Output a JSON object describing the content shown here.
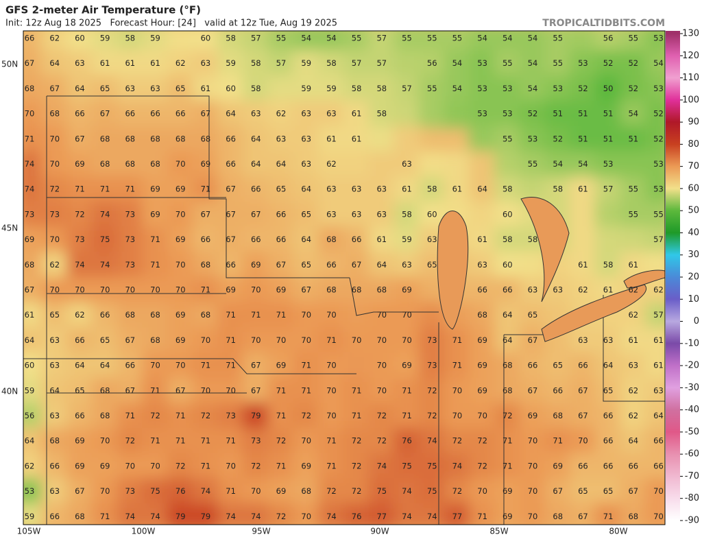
{
  "header": {
    "title": "GFS 2-meter Air Temperature (°F)",
    "subtitle": "Init: 12z Aug 18 2025   Forecast Hour: [24]   valid at 12z Tue, Aug 19 2025",
    "site": "TROPICALTIDBITS.COM"
  },
  "map": {
    "lat_labels": [
      "50N",
      "45N",
      "40N"
    ],
    "lon_labels": [
      "105W",
      "100W",
      "95W",
      "90W",
      "85W",
      "80W"
    ],
    "values": [
      [
        66,
        62,
        60,
        59,
        58,
        59,
        null,
        60,
        58,
        57,
        55,
        54,
        54,
        55,
        57,
        55,
        55,
        55,
        54,
        54,
        54,
        55,
        null,
        56,
        55,
        53
      ],
      [
        67,
        64,
        63,
        61,
        61,
        61,
        62,
        63,
        59,
        58,
        57,
        59,
        58,
        57,
        57,
        null,
        56,
        54,
        53,
        55,
        54,
        55,
        53,
        52,
        52,
        54
      ],
      [
        68,
        67,
        64,
        65,
        63,
        63,
        65,
        61,
        60,
        58,
        null,
        59,
        59,
        58,
        58,
        57,
        55,
        54,
        53,
        53,
        54,
        53,
        52,
        50,
        52,
        53
      ],
      [
        70,
        68,
        66,
        67,
        66,
        66,
        66,
        67,
        64,
        63,
        62,
        63,
        63,
        61,
        58,
        null,
        null,
        null,
        53,
        53,
        52,
        51,
        51,
        51,
        54,
        52
      ],
      [
        71,
        70,
        67,
        68,
        68,
        68,
        68,
        68,
        66,
        64,
        63,
        63,
        61,
        61,
        null,
        null,
        null,
        null,
        null,
        55,
        53,
        52,
        51,
        51,
        51,
        52
      ],
      [
        74,
        70,
        69,
        68,
        68,
        68,
        70,
        69,
        66,
        64,
        64,
        63,
        62,
        null,
        null,
        63,
        null,
        null,
        null,
        null,
        55,
        54,
        54,
        53,
        null,
        53
      ],
      [
        74,
        72,
        71,
        71,
        71,
        69,
        69,
        71,
        67,
        66,
        65,
        64,
        63,
        63,
        63,
        61,
        58,
        61,
        64,
        58,
        null,
        58,
        61,
        57,
        55,
        53
      ],
      [
        73,
        73,
        72,
        74,
        73,
        69,
        70,
        67,
        67,
        67,
        66,
        65,
        63,
        63,
        63,
        58,
        60,
        null,
        null,
        60,
        null,
        null,
        null,
        null,
        55,
        55
      ],
      [
        69,
        70,
        73,
        75,
        73,
        71,
        69,
        66,
        67,
        66,
        66,
        64,
        68,
        66,
        61,
        59,
        63,
        null,
        61,
        58,
        58,
        null,
        null,
        null,
        null,
        57
      ],
      [
        68,
        62,
        74,
        74,
        73,
        71,
        70,
        68,
        66,
        69,
        67,
        65,
        66,
        67,
        64,
        63,
        65,
        null,
        63,
        60,
        null,
        null,
        61,
        58,
        61,
        null
      ],
      [
        67,
        70,
        70,
        70,
        70,
        70,
        70,
        71,
        69,
        70,
        69,
        67,
        68,
        68,
        68,
        69,
        null,
        null,
        66,
        66,
        63,
        63,
        62,
        61,
        62,
        62
      ],
      [
        61,
        65,
        62,
        66,
        68,
        68,
        69,
        68,
        71,
        71,
        71,
        70,
        70,
        null,
        70,
        70,
        null,
        null,
        68,
        64,
        65,
        null,
        null,
        null,
        62,
        57
      ],
      [
        64,
        63,
        66,
        65,
        67,
        68,
        69,
        70,
        71,
        70,
        70,
        70,
        71,
        70,
        70,
        70,
        73,
        71,
        69,
        64,
        67,
        null,
        63,
        63,
        61,
        61
      ],
      [
        60,
        63,
        64,
        64,
        66,
        70,
        70,
        71,
        71,
        67,
        69,
        71,
        70,
        null,
        70,
        69,
        73,
        71,
        69,
        68,
        66,
        65,
        66,
        64,
        63,
        61
      ],
      [
        59,
        64,
        65,
        68,
        67,
        71,
        67,
        70,
        70,
        67,
        71,
        71,
        70,
        71,
        70,
        71,
        72,
        70,
        69,
        68,
        67,
        66,
        67,
        65,
        62,
        63
      ],
      [
        56,
        63,
        66,
        68,
        71,
        72,
        71,
        72,
        73,
        79,
        71,
        72,
        70,
        71,
        72,
        71,
        72,
        70,
        70,
        72,
        69,
        68,
        67,
        66,
        62,
        64
      ],
      [
        64,
        68,
        69,
        70,
        72,
        71,
        71,
        71,
        71,
        73,
        72,
        70,
        71,
        72,
        72,
        76,
        74,
        72,
        72,
        71,
        70,
        71,
        70,
        66,
        64,
        66
      ],
      [
        62,
        66,
        69,
        69,
        70,
        70,
        72,
        71,
        70,
        72,
        71,
        69,
        71,
        72,
        74,
        75,
        75,
        74,
        72,
        71,
        70,
        69,
        66,
        66,
        66,
        66
      ],
      [
        53,
        63,
        67,
        70,
        73,
        75,
        76,
        74,
        71,
        70,
        69,
        68,
        72,
        72,
        75,
        74,
        75,
        72,
        70,
        69,
        70,
        67,
        65,
        65,
        67,
        70
      ],
      [
        59,
        66,
        68,
        71,
        74,
        74,
        79,
        79,
        74,
        74,
        72,
        70,
        74,
        76,
        77,
        74,
        74,
        77,
        71,
        69,
        70,
        68,
        67,
        71,
        68,
        70
      ]
    ]
  },
  "colorbar": {
    "ticks": [
      130,
      120,
      110,
      100,
      90,
      80,
      70,
      60,
      50,
      40,
      30,
      20,
      10,
      0,
      -10,
      -20,
      -30,
      -40,
      -50,
      -60,
      -70,
      -80,
      -90
    ],
    "colors": [
      "#a0306a",
      "#e060b0",
      "#f0a0d0",
      "#e0309a",
      "#b01828",
      "#c84020",
      "#eb9a55",
      "#f2e08a",
      "#5cb83c",
      "#1e9a28",
      "#30c8e8",
      "#4a8ad8",
      "#6a5ec8",
      "#b8a8e0",
      "#7a4aa8",
      "#c070c8",
      "#e0a0e0",
      "#d070a0",
      "#e05888",
      "#e890b0",
      "#f0b8d0",
      "#f8dceb",
      "#ffffff"
    ]
  }
}
